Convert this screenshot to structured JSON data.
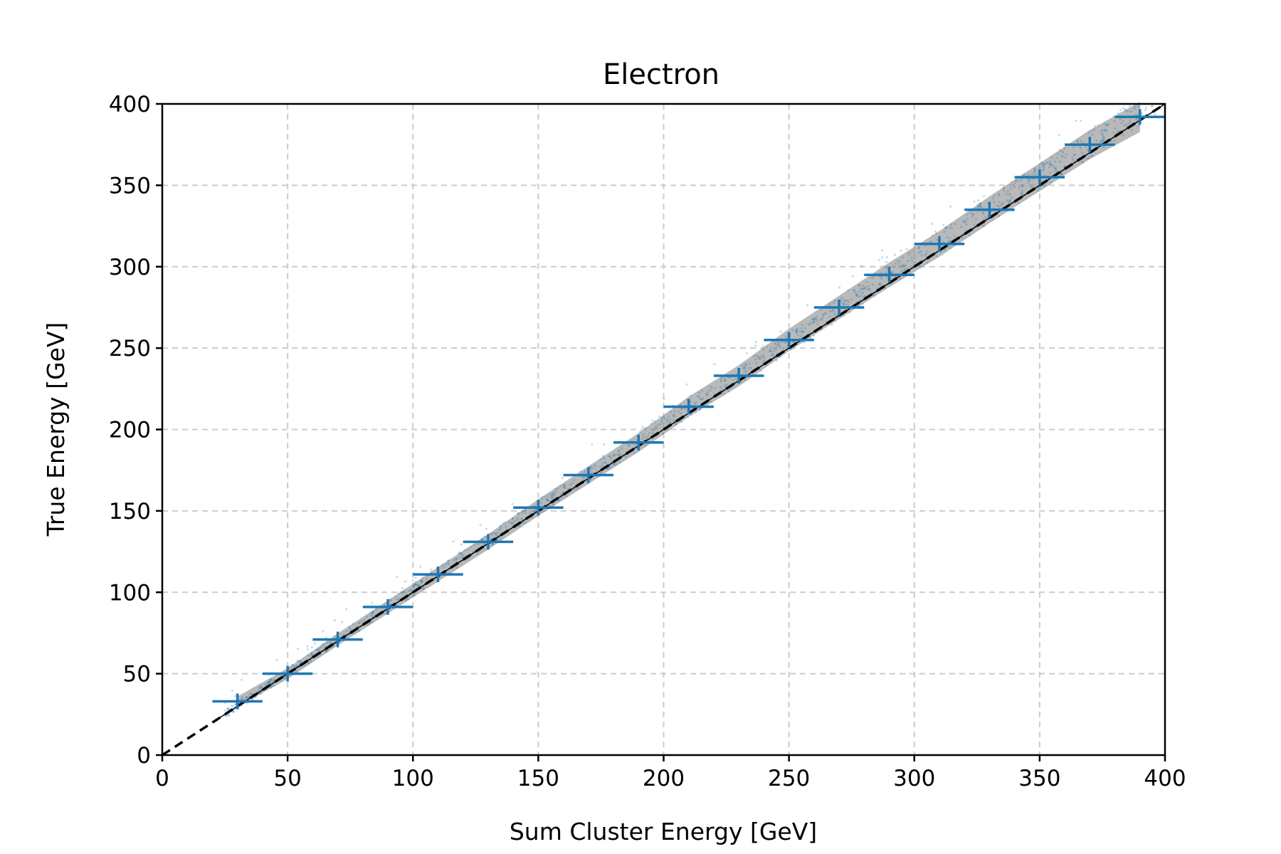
{
  "chart_data": {
    "type": "scatter",
    "title": "Electron",
    "xlabel": "Sum Cluster Energy [GeV]",
    "ylabel": "True Energy [GeV]",
    "xlim": [
      0,
      400
    ],
    "ylim": [
      0,
      400
    ],
    "xticks": [
      "0",
      "50",
      "100",
      "150",
      "200",
      "250",
      "300",
      "350",
      "400"
    ],
    "yticks": [
      "0",
      "50",
      "100",
      "150",
      "200",
      "250",
      "300",
      "350",
      "400"
    ],
    "grid": true,
    "legend": "none",
    "colors": {
      "points": "#1f77b4",
      "profile": "#1f77b4",
      "band": "#7f7f7f",
      "diagonal": "#000000"
    },
    "reference_line": {
      "style": "dashed",
      "from": [
        0,
        0
      ],
      "to": [
        400,
        400
      ]
    },
    "fit_line": {
      "style": "solid",
      "from": [
        22,
        22
      ],
      "to": [
        400,
        400
      ]
    },
    "profile": {
      "x": [
        30,
        50,
        70,
        90,
        110,
        130,
        150,
        170,
        190,
        210,
        230,
        250,
        270,
        290,
        310,
        330,
        350,
        370,
        390
      ],
      "y": [
        33,
        50,
        71,
        91,
        111,
        131,
        152,
        172,
        192,
        214,
        233,
        255,
        275,
        295,
        314,
        335,
        355,
        375,
        392
      ],
      "xerr": 10
    }
  }
}
